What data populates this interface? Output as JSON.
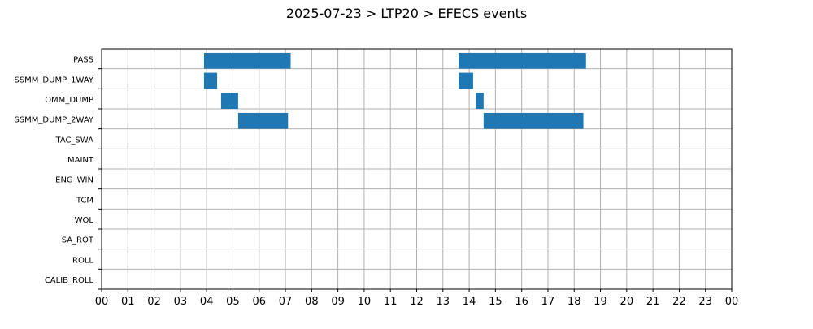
{
  "colors": {
    "bar": "#1f77b4",
    "grid": "#b0b0b0",
    "axis": "#000000",
    "background": "#ffffff"
  },
  "chart_data": {
    "type": "bar",
    "orientation": "horizontal",
    "title": "2025-07-23 > LTP20 > EFECS events",
    "xlabel": "",
    "ylabel": "",
    "x_unit": "hour of day",
    "xlim": [
      0,
      24
    ],
    "x_tick_labels": [
      "00",
      "01",
      "02",
      "03",
      "04",
      "05",
      "06",
      "07",
      "08",
      "09",
      "10",
      "11",
      "12",
      "13",
      "14",
      "15",
      "16",
      "17",
      "18",
      "19",
      "20",
      "21",
      "22",
      "23",
      "00"
    ],
    "grid": true,
    "legend": "none",
    "categories": [
      "PASS",
      "SSMM_DUMP_1WAY",
      "OMM_DUMP",
      "SSMM_DUMP_2WAY",
      "TAC_SWA",
      "MAINT",
      "ENG_WIN",
      "TCM",
      "WOL",
      "SA_ROT",
      "ROLL",
      "CALIB_ROLL"
    ],
    "events": [
      {
        "category": "PASS",
        "start": 3.9,
        "end": 7.2
      },
      {
        "category": "PASS",
        "start": 13.6,
        "end": 18.45
      },
      {
        "category": "SSMM_DUMP_1WAY",
        "start": 3.9,
        "end": 4.4
      },
      {
        "category": "SSMM_DUMP_1WAY",
        "start": 13.6,
        "end": 14.15
      },
      {
        "category": "OMM_DUMP",
        "start": 4.55,
        "end": 5.2
      },
      {
        "category": "OMM_DUMP",
        "start": 14.25,
        "end": 14.55
      },
      {
        "category": "SSMM_DUMP_2WAY",
        "start": 5.2,
        "end": 7.1
      },
      {
        "category": "SSMM_DUMP_2WAY",
        "start": 14.55,
        "end": 18.35
      }
    ]
  }
}
